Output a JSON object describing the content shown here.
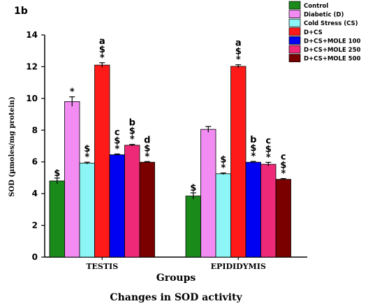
{
  "chart_data": {
    "type": "bar",
    "panel_label": "1b",
    "title": "Changes in SOD activity",
    "xlabel": "Groups",
    "ylabel": "SOD (µmoles/mg protein)",
    "ylim": [
      0,
      14
    ],
    "yticks": [
      "0",
      "2",
      "4",
      "6",
      "8",
      "10",
      "12",
      "14"
    ],
    "grid": false,
    "legend_position": "top-right",
    "categories": [
      "TESTIS",
      "EPIDIDYMIS"
    ],
    "series": [
      {
        "name": "Control",
        "color": "#1a8a1a",
        "values": [
          4.8,
          3.85
        ],
        "errors": [
          0.18,
          0.2
        ],
        "labels": [
          "$",
          "$"
        ]
      },
      {
        "name": "Diabetic (D)",
        "color": "#f28cf2",
        "values": [
          9.8,
          8.05
        ],
        "errors": [
          0.3,
          0.18
        ],
        "labels": [
          "*",
          ""
        ]
      },
      {
        "name": "Cold Stress (CS)",
        "color": "#8df5f5",
        "values": [
          5.92,
          5.25
        ],
        "errors": [
          0.06,
          0.05
        ],
        "labels": [
          "$\n*",
          "$\n*"
        ]
      },
      {
        "name": "D+CS",
        "color": "#ff1a1a",
        "values": [
          12.1,
          12.02
        ],
        "errors": [
          0.15,
          0.1
        ],
        "labels": [
          "a\n$\n*",
          "a\n$\n*"
        ]
      },
      {
        "name": "D+CS+MOLE 100",
        "color": "#0000f2",
        "values": [
          6.45,
          5.98
        ],
        "errors": [
          0.05,
          0.05
        ],
        "labels": [
          "c\n$\n*",
          "b\n$\n*"
        ]
      },
      {
        "name": "D+CS+MOLE 250",
        "color": "#ee2a78",
        "values": [
          7.05,
          5.85
        ],
        "errors": [
          0.05,
          0.12
        ],
        "labels": [
          "b\n$\n*",
          "c\n$\n*"
        ]
      },
      {
        "name": "D+CS+MOLE 500",
        "color": "#7a0000",
        "values": [
          5.98,
          4.9
        ],
        "errors": [
          0.04,
          0.05
        ],
        "labels": [
          "d\n$\n*",
          "c\n$\n*"
        ]
      }
    ]
  }
}
